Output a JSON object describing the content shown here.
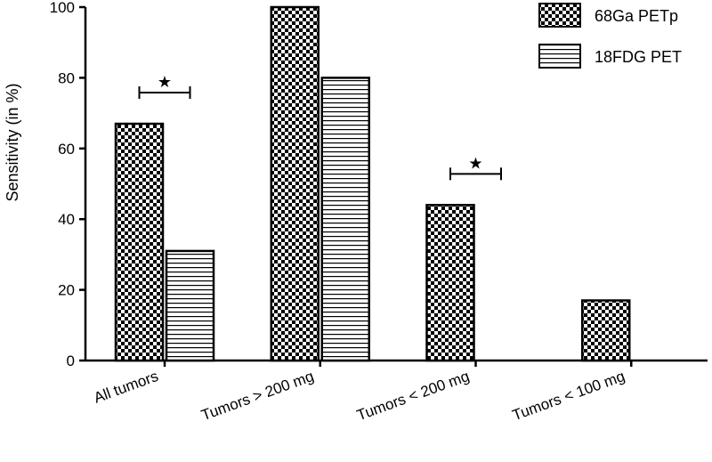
{
  "chart_data": {
    "type": "bar",
    "categories": [
      "All tumors",
      "Tumors > 200 mg",
      "Tumors < 200 mg",
      "Tumors < 100 mg"
    ],
    "series": [
      {
        "name": "68Ga PETp",
        "pattern": "checker",
        "values": [
          67,
          100,
          44,
          17
        ]
      },
      {
        "name": "18FDG PET",
        "pattern": "horizontal-stripes",
        "values": [
          31,
          80,
          null,
          null
        ]
      }
    ],
    "ylabel": "Sensitivity (in %)",
    "xlabel": "",
    "ylim": [
      0,
      100
    ],
    "yticks": [
      0,
      20,
      40,
      60,
      80,
      100
    ],
    "grid": false,
    "legend_position": "top-right",
    "annotations": [
      {
        "text": "★",
        "category": "All tumors",
        "type": "significance-bracket"
      },
      {
        "text": "★",
        "category": "Tumors < 200 mg",
        "type": "significance-bracket"
      }
    ],
    "colors": {
      "bar_fill": "#000000",
      "bar_bg": "#ffffff",
      "axis": "#000000"
    }
  }
}
